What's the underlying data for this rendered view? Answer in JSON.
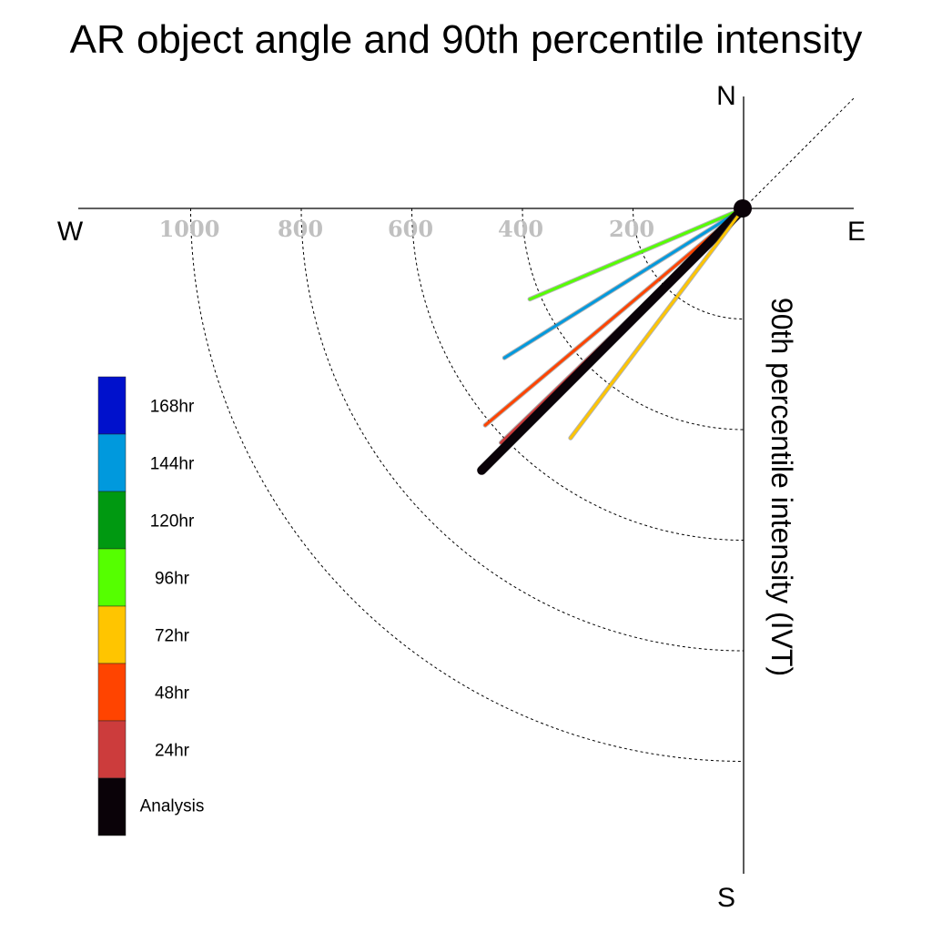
{
  "chart_data": {
    "type": "polar-vector",
    "title": "AR object angle and 90th percentile intensity",
    "ylabel": "90th percentile intensity (IVT)",
    "directions": {
      "north": "N",
      "south": "S",
      "east": "E",
      "west": "W"
    },
    "radial_ticks": [
      "200",
      "400",
      "600",
      "800",
      "1000"
    ],
    "radial_tick_values": [
      200,
      400,
      600,
      800,
      1000
    ],
    "rlim": [
      0,
      1200
    ],
    "vectors": [
      {
        "name": "96hr",
        "color": "#55ff00",
        "magnitude": 420,
        "angle_deg": 203
      },
      {
        "name": "144hr",
        "color": "#0099dd",
        "magnitude": 510,
        "angle_deg": 212
      },
      {
        "name": "48hr",
        "color": "#ff4400",
        "magnitude": 610,
        "angle_deg": 220
      },
      {
        "name": "24hr",
        "color": "#cc3c3c",
        "magnitude": 610,
        "angle_deg": 224
      },
      {
        "name": "Analysis",
        "color": "#0a0208",
        "magnitude": 670,
        "angle_deg": 225
      },
      {
        "name": "72hr",
        "color": "#ffc500",
        "magnitude": 520,
        "angle_deg": 233
      }
    ],
    "legend": [
      {
        "label": "168hr",
        "color": "#0011cc"
      },
      {
        "label": "144hr",
        "color": "#0099dd"
      },
      {
        "label": "120hr",
        "color": "#009911"
      },
      {
        "label": "96hr",
        "color": "#55ff00"
      },
      {
        "label": "72hr",
        "color": "#ffc500"
      },
      {
        "label": "48hr",
        "color": "#ff4400"
      },
      {
        "label": "24hr",
        "color": "#cc3c3c"
      },
      {
        "label": "Analysis",
        "color": "#0a0208"
      }
    ],
    "legend_placement": "lower-left"
  }
}
